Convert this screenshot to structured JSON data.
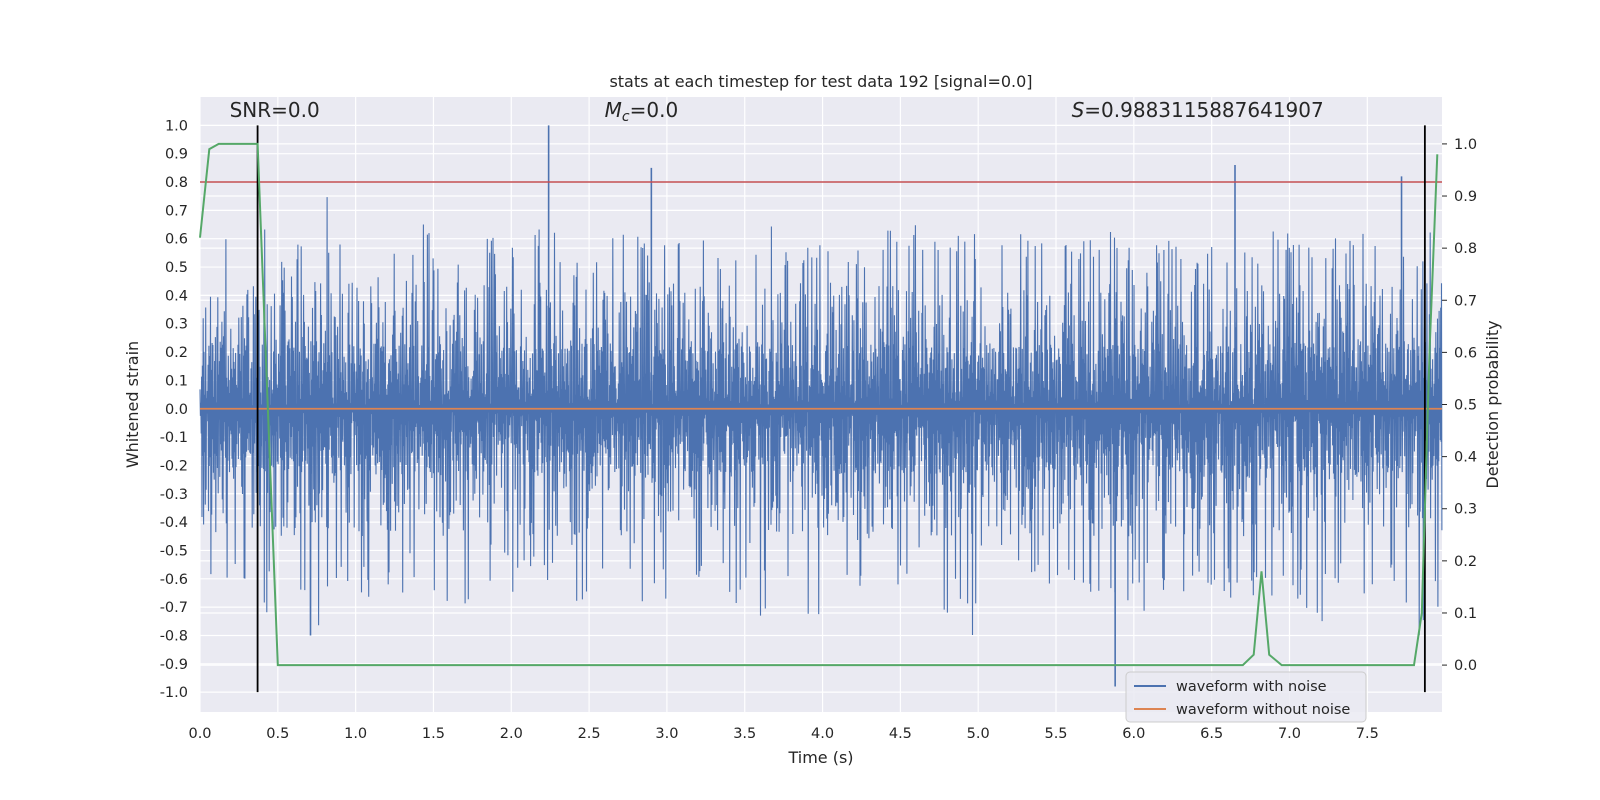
{
  "chart_data": {
    "type": "line",
    "title": "stats at each timestep for test data 192 [signal=0.0]",
    "xlabel": "Time (s)",
    "ylabel": "Whitened strain",
    "y2label": "Detection probability",
    "xlim": [
      0.0,
      7.98
    ],
    "ylim": [
      -1.07,
      1.1
    ],
    "y2lim": [
      -0.09,
      1.09
    ],
    "x_ticks": [
      "0.0",
      "0.5",
      "1.0",
      "1.5",
      "2.0",
      "2.5",
      "3.0",
      "3.5",
      "4.0",
      "4.5",
      "5.0",
      "5.5",
      "6.0",
      "6.5",
      "7.0",
      "7.5"
    ],
    "y_ticks": [
      "1.0",
      "0.9",
      "0.8",
      "0.7",
      "0.6",
      "0.5",
      "0.4",
      "0.3",
      "0.2",
      "0.1",
      "0.0",
      "-0.1",
      "-0.2",
      "-0.3",
      "-0.4",
      "-0.5",
      "-0.6",
      "-0.7",
      "-0.8",
      "-0.9",
      "-1.0"
    ],
    "y2_ticks": [
      "1.0",
      "0.9",
      "0.8",
      "0.7",
      "0.6",
      "0.5",
      "0.4",
      "0.3",
      "0.2",
      "0.1",
      "0.0"
    ],
    "grid": true,
    "legend_position": "bottom-right",
    "annotations": {
      "snr": "SNR=0.0",
      "mc_symbol": "M",
      "mc_sub": "c",
      "mc_value": "=0.0",
      "s_symbol": "S",
      "s_value": "=0.9883115887641907"
    },
    "series": [
      {
        "name": "waveform with noise",
        "color": "#4c72b0",
        "axis": "left",
        "envelope_pos": [
          0.6,
          0.68,
          0.7,
          0.69,
          0.66,
          0.55,
          0.62,
          0.7,
          0.8,
          0.62,
          0.58,
          0.64,
          0.63,
          0.61,
          0.66,
          0.57,
          0.56,
          0.6,
          0.64,
          0.56,
          0.59,
          0.65,
          0.63,
          0.57,
          0.54,
          0.55,
          0.67,
          0.63,
          0.63,
          0.61,
          0.61,
          0.62,
          0.63,
          0.56,
          0.62,
          0.64,
          0.65,
          0.59,
          0.58,
          0.6,
          0.61,
          0.6,
          0.56,
          0.58,
          0.63,
          0.62,
          0.66,
          0.6,
          0.65,
          0.62,
          0.57,
          0.61,
          0.64,
          0.61,
          0.61,
          0.66,
          0.61,
          0.61,
          0.63,
          0.57,
          0.55,
          0.6,
          0.64,
          0.59,
          0.56,
          0.63,
          0.57,
          0.59,
          0.6,
          0.63,
          0.62,
          0.57,
          0.6,
          0.62,
          0.62,
          0.6,
          0.64,
          0.61,
          0.55,
          0.63
        ],
        "envelope_neg": [
          -0.64,
          -0.62,
          -0.6,
          -0.68,
          -0.72,
          -0.75,
          -0.7,
          -0.8,
          -0.67,
          -0.62,
          -0.67,
          -0.62,
          -0.68,
          -0.65,
          -0.72,
          -0.68,
          -0.68,
          -0.7,
          -0.62,
          -0.58,
          -0.65,
          -0.6,
          -0.62,
          -0.67,
          -0.68,
          -0.63,
          -0.65,
          -0.66,
          -0.74,
          -0.63,
          -0.7,
          -0.65,
          -0.6,
          -0.66,
          -0.69,
          -0.61,
          -0.76,
          -0.65,
          -0.62,
          -0.73,
          -0.65,
          -0.66,
          -0.64,
          -0.62,
          -0.66,
          -0.63,
          -0.7,
          -0.77,
          -0.72,
          -0.8,
          -0.72,
          -0.6,
          -0.62,
          -0.64,
          -0.62,
          -0.68,
          -0.67,
          -0.69,
          -0.66,
          -0.69,
          -0.72,
          -0.64,
          -0.65,
          -0.66,
          -0.62,
          -0.68,
          -0.69,
          -0.67,
          -0.64,
          -0.7,
          -0.74,
          -0.72,
          -0.76,
          -0.67,
          -0.7,
          -0.82,
          -0.64,
          -0.86,
          -0.8,
          -0.7
        ],
        "spikes": [
          {
            "x": 2.24,
            "y": 1.0
          },
          {
            "x": 2.9,
            "y": 0.85
          },
          {
            "x": 6.65,
            "y": 0.86
          },
          {
            "x": 7.72,
            "y": 0.82
          },
          {
            "x": 5.88,
            "y": -0.98
          },
          {
            "x": 0.71,
            "y": -0.8
          }
        ]
      },
      {
        "name": "waveform without noise",
        "color": "#dd8452",
        "axis": "left",
        "x": [
          0.0,
          7.98
        ],
        "y": [
          0.0,
          0.0
        ]
      },
      {
        "name": "detection probability",
        "color": "#55a868",
        "axis": "right",
        "x": [
          0.0,
          0.06,
          0.12,
          0.37,
          0.5,
          6.7,
          6.77,
          6.82,
          6.87,
          6.95,
          7.8,
          7.85,
          7.9,
          7.95
        ],
        "y": [
          0.82,
          0.99,
          1.0,
          1.0,
          0.0,
          0.0,
          0.02,
          0.18,
          0.02,
          0.0,
          0.0,
          0.1,
          0.6,
          0.98
        ]
      }
    ],
    "threshold_line": {
      "y": 0.8,
      "color": "#c44e52",
      "axis": "left"
    },
    "vertical_lines": [
      {
        "x": 0.37,
        "color": "#000000"
      },
      {
        "x": 7.87,
        "color": "#000000"
      }
    ],
    "colors": {
      "background": "#eaeaf2",
      "grid": "#ffffff",
      "text": "#262626"
    }
  }
}
